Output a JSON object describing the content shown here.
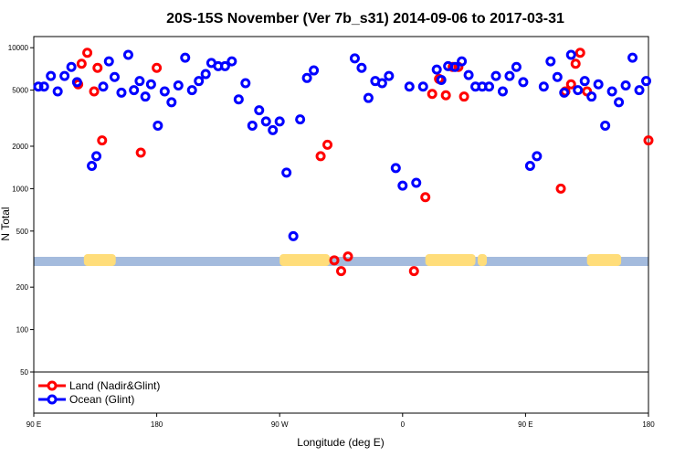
{
  "chart_data": {
    "type": "scatter",
    "title": "20S-15S November (Ver 7b_s31)   2014-09-06 to 2017-03-31",
    "xlabel": "Longitude (deg E)",
    "ylabel": "N Total",
    "x_scale": "linear",
    "y_scale": "log",
    "xlim": [
      -90,
      180
    ],
    "ylim": [
      50,
      12000
    ],
    "x_ticks": [
      {
        "value": -90,
        "label": "90 E"
      },
      {
        "value": -36,
        "label": "180"
      },
      {
        "value": 18,
        "label": "90 W"
      },
      {
        "value": 72,
        "label": "0"
      },
      {
        "value": 126,
        "label": "90 E"
      },
      {
        "value": 180,
        "label": "180"
      }
    ],
    "y_ticks": [
      {
        "value": 50,
        "label": "50"
      },
      {
        "value": 100,
        "label": "100"
      },
      {
        "value": 200,
        "label": "200"
      },
      {
        "value": 500,
        "label": "500"
      },
      {
        "value": 1000,
        "label": "1000"
      },
      {
        "value": 2000,
        "label": "2000"
      },
      {
        "value": 5000,
        "label": "5000"
      },
      {
        "value": 10000,
        "label": "10000"
      }
    ],
    "grid": false,
    "legend_position": "bottom-left",
    "series": [
      {
        "name": "Land (Nadir&Glint)",
        "color": "#ff0000",
        "marker": "circle",
        "x": [
          -70.5,
          -69,
          -66.5,
          -63.5,
          -62,
          -60,
          -43,
          36,
          39,
          42,
          45,
          48,
          77,
          82,
          85,
          88,
          91,
          94,
          96.5,
          99,
          141.5,
          143.5,
          146,
          148,
          150,
          153,
          -36,
          180
        ],
        "y": [
          5500,
          7700,
          9200,
          4900,
          7200,
          2200,
          1800,
          1700,
          2050,
          310,
          260,
          330,
          260,
          870,
          4700,
          6000,
          4600,
          7300,
          7300,
          4500,
          1000,
          4900,
          5500,
          7700,
          9200,
          4900,
          7200,
          2200
        ],
        "y_override_note": "",
        "extra_points": []
      },
      {
        "name": "Ocean (Glint)",
        "color": "#0000ff",
        "marker": "circle",
        "x": [
          -88,
          -85.5,
          -82.5,
          -79.5,
          -76.5,
          -73.5,
          -71,
          -64.5,
          -62.5,
          -59.5,
          -57,
          -54.5,
          -51.5,
          -48.5,
          -46,
          -43.5,
          -41,
          -38.5,
          -35.5,
          -32.5,
          -29.5,
          -26.5,
          -23.5,
          -20.5,
          -17.5,
          -14.5,
          -12,
          -9,
          -6,
          -3,
          0,
          3,
          6,
          9,
          12,
          15,
          18,
          21,
          24,
          27,
          30,
          33,
          51,
          54,
          57,
          60,
          63,
          66,
          69,
          72,
          75,
          78,
          81,
          87,
          89,
          92,
          95,
          98,
          101,
          104,
          107,
          110,
          113,
          116,
          119,
          122,
          125,
          128,
          131,
          134,
          137,
          140,
          143,
          146,
          149,
          152,
          155,
          158,
          161,
          164,
          167,
          170,
          173,
          176,
          179
        ],
        "y": [
          5300,
          5300,
          6300,
          4900,
          6300,
          7300,
          5700,
          1450,
          1700,
          5300,
          8000,
          6200,
          4800,
          8900,
          5000,
          5800,
          4500,
          5500,
          2800,
          4900,
          4100,
          5400,
          8500,
          5000,
          5800,
          6500,
          7800,
          7400,
          7400,
          8000,
          4300,
          5600,
          2800,
          3600,
          3000,
          2600,
          3000,
          1300,
          460,
          3100,
          6100,
          6900,
          8400,
          7200,
          4400,
          5800,
          5600,
          6300,
          1400,
          1050,
          5300,
          1100,
          5300,
          7000,
          5900,
          7400,
          7300,
          8000,
          6400,
          5300,
          5300,
          5300,
          6300,
          4900,
          6300,
          7300,
          5700,
          1450,
          1700,
          5300,
          8000,
          6200,
          4800,
          8900,
          5000,
          5800,
          4500,
          5500,
          2800,
          4900,
          4100,
          5400,
          8500,
          5000,
          5800
        ],
        "extra_points": []
      }
    ],
    "land_mask": {
      "ocean_color": "#a4bbdd",
      "land_color": "#ffdd7a"
    }
  }
}
